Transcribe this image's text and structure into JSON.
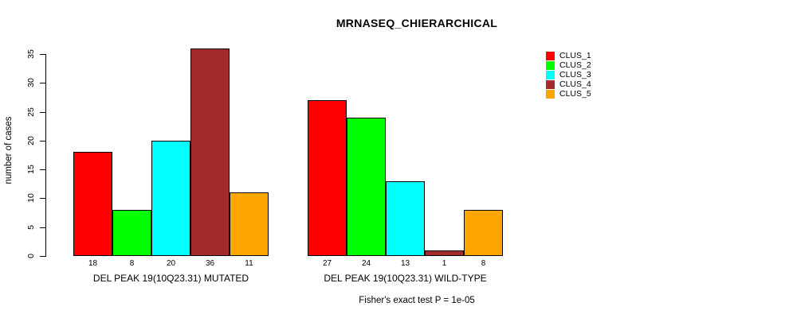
{
  "title": "MRNASEQ_CHIERARCHICAL",
  "y_axis": {
    "label": "number of cases",
    "ticks": [
      0,
      5,
      10,
      15,
      20,
      25,
      30,
      35
    ]
  },
  "footer": "Fisher's exact test P = 1e-05",
  "legend": {
    "items": [
      {
        "label": "CLUS_1",
        "color": "#ff0000"
      },
      {
        "label": "CLUS_2",
        "color": "#00ff00"
      },
      {
        "label": "CLUS_3",
        "color": "#00ffff"
      },
      {
        "label": "CLUS_4",
        "color": "#a52a2a"
      },
      {
        "label": "CLUS_5",
        "color": "#ffa500"
      }
    ]
  },
  "chart_data": {
    "type": "bar",
    "title": "MRNASEQ_CHIERARCHICAL",
    "ylabel": "number of cases",
    "xlabel": "",
    "ylim": [
      0,
      35
    ],
    "yticks": [
      0,
      5,
      10,
      15,
      20,
      25,
      30,
      35
    ],
    "grid": false,
    "legend_position": "right",
    "series_labels": [
      "CLUS_1",
      "CLUS_2",
      "CLUS_3",
      "CLUS_4",
      "CLUS_5"
    ],
    "series_colors": [
      "#ff0000",
      "#00ff00",
      "#00ffff",
      "#a52a2a",
      "#ffa500"
    ],
    "groups": [
      {
        "label": "DEL PEAK 19(10Q23.31) MUTATED",
        "values": [
          18,
          8,
          20,
          36,
          11
        ]
      },
      {
        "label": "DEL PEAK 19(10Q23.31) WILD-TYPE",
        "values": [
          27,
          24,
          13,
          1,
          8
        ]
      }
    ],
    "bar_value_labels_shown": true,
    "annotation": "Fisher's exact test P = 1e-05"
  }
}
